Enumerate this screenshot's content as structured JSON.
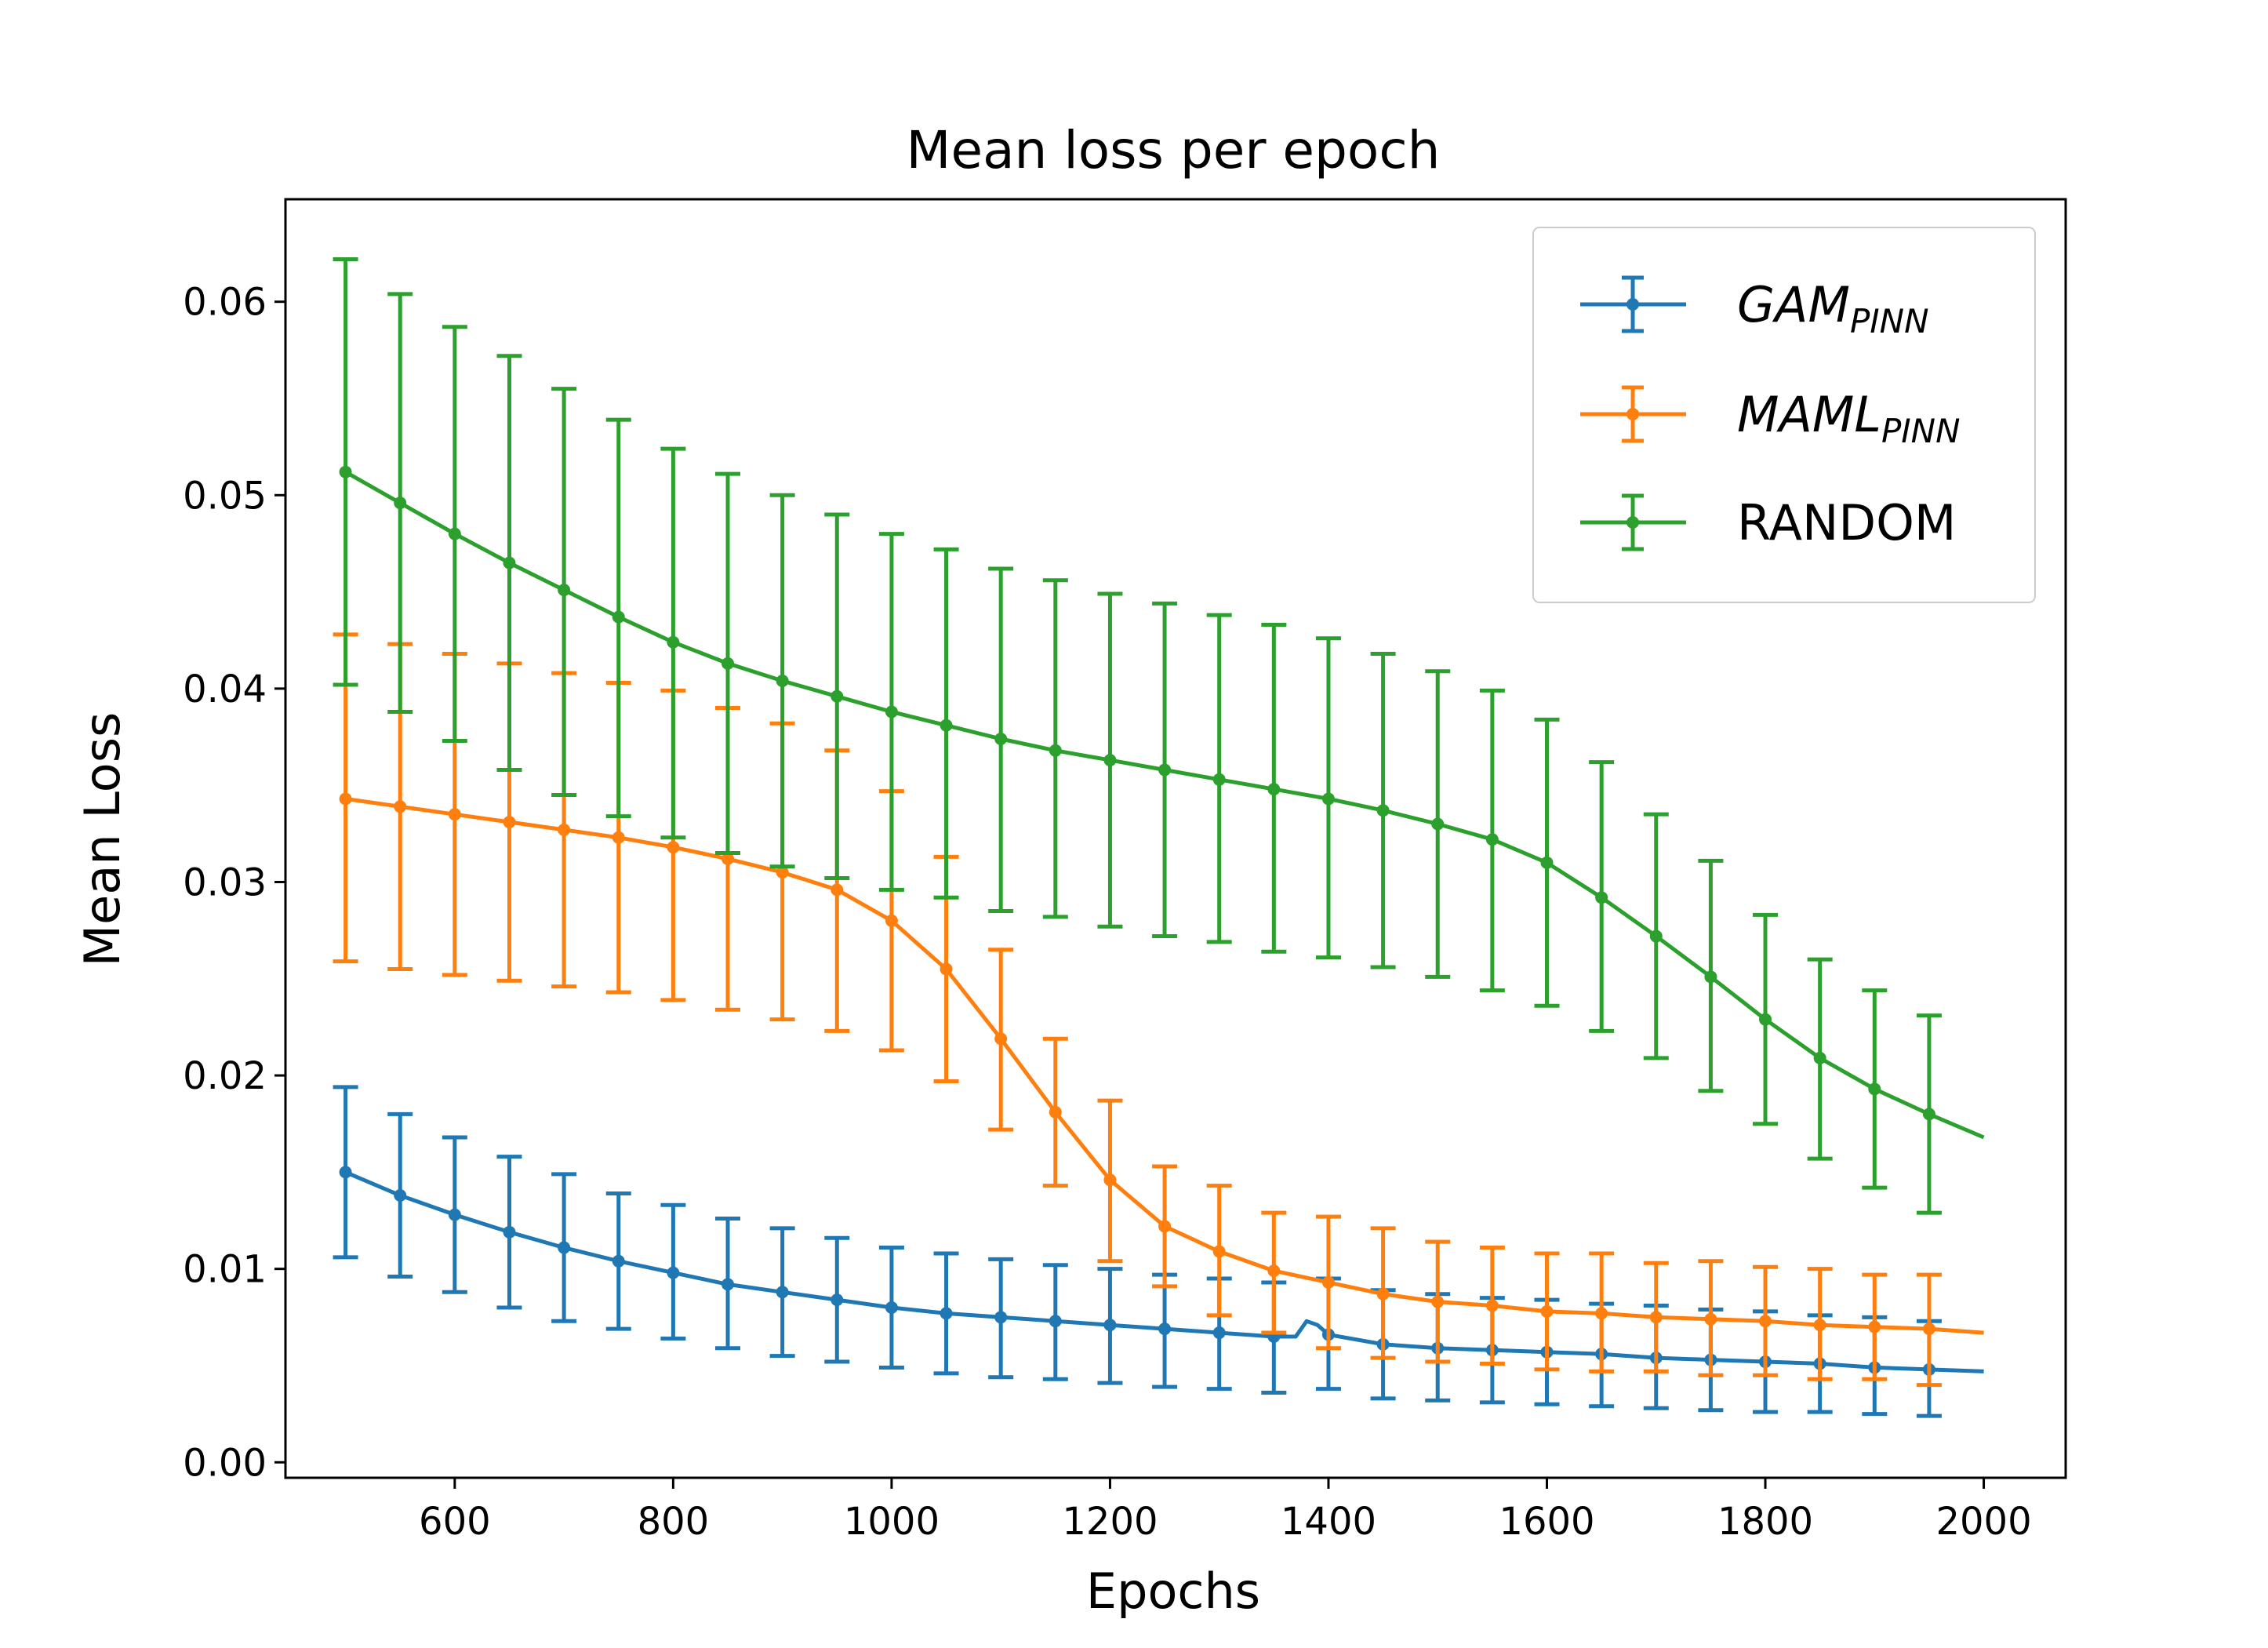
{
  "chart_data": {
    "type": "line",
    "title": "Mean loss per epoch",
    "xlabel": "Epochs",
    "ylabel": "Mean Loss",
    "xlim": [
      445,
      2075
    ],
    "ylim": [
      -0.0008,
      0.0653
    ],
    "xticks": [
      600,
      800,
      1000,
      1200,
      1400,
      1600,
      1800,
      2000
    ],
    "xtick_labels": [
      "600",
      "800",
      "1000",
      "1200",
      "1400",
      "1600",
      "1800",
      "2000"
    ],
    "yticks": [
      0.0,
      0.01,
      0.02,
      0.03,
      0.04,
      0.05,
      0.06
    ],
    "ytick_labels": [
      "0.00",
      "0.01",
      "0.02",
      "0.03",
      "0.04",
      "0.05",
      "0.06"
    ],
    "grid": false,
    "legend": {
      "position": "top-right"
    },
    "series": [
      {
        "name": "GAM",
        "name_subscript": "PINN",
        "name_style": "italic",
        "color": "#1f77b4",
        "error_x": [
          500,
          550,
          600,
          650,
          700,
          750,
          800,
          850,
          900,
          950,
          1000,
          1050,
          1100,
          1150,
          1200,
          1250,
          1300,
          1350,
          1400,
          1450,
          1500,
          1550,
          1600,
          1650,
          1700,
          1750,
          1800,
          1850,
          1900,
          1950
        ],
        "mean": [
          0.015,
          0.0138,
          0.0128,
          0.0119,
          0.0111,
          0.0104,
          0.0098,
          0.0092,
          0.0088,
          0.0084,
          0.008,
          0.0077,
          0.0075,
          0.0073,
          0.0071,
          0.0069,
          0.0067,
          0.0065,
          0.0066,
          0.0061,
          0.0059,
          0.0058,
          0.0057,
          0.0056,
          0.0054,
          0.0053,
          0.0052,
          0.0051,
          0.0049,
          0.0048
        ],
        "upper": [
          0.0194,
          0.018,
          0.0168,
          0.0158,
          0.0149,
          0.0139,
          0.0133,
          0.0126,
          0.0121,
          0.0116,
          0.0111,
          0.0108,
          0.0105,
          0.0102,
          0.01,
          0.0097,
          0.0095,
          0.0093,
          0.0095,
          0.0089,
          0.0087,
          0.0085,
          0.0084,
          0.0082,
          0.0081,
          0.0079,
          0.0078,
          0.0076,
          0.0075,
          0.0073
        ],
        "lower": [
          0.0106,
          0.0096,
          0.0088,
          0.008,
          0.0073,
          0.0069,
          0.0064,
          0.0059,
          0.0055,
          0.0052,
          0.0049,
          0.0046,
          0.0044,
          0.0043,
          0.0041,
          0.0039,
          0.0038,
          0.0036,
          0.0038,
          0.0033,
          0.0032,
          0.0031,
          0.003,
          0.0029,
          0.0028,
          0.0027,
          0.0026,
          0.0026,
          0.0025,
          0.0024
        ],
        "line_x": [
          500,
          550,
          600,
          650,
          700,
          750,
          800,
          850,
          900,
          950,
          1000,
          1050,
          1100,
          1150,
          1200,
          1250,
          1300,
          1350,
          1370,
          1380,
          1390,
          1400,
          1450,
          1500,
          1550,
          1600,
          1650,
          1700,
          1750,
          1800,
          1850,
          1900,
          1950,
          2000
        ],
        "line_y": [
          0.015,
          0.0138,
          0.0128,
          0.0119,
          0.0111,
          0.0104,
          0.0098,
          0.0092,
          0.0088,
          0.0084,
          0.008,
          0.0077,
          0.0075,
          0.0073,
          0.0071,
          0.0069,
          0.0067,
          0.0065,
          0.0065,
          0.0073,
          0.0071,
          0.0066,
          0.0061,
          0.0059,
          0.0058,
          0.0057,
          0.0056,
          0.0054,
          0.0053,
          0.0052,
          0.0051,
          0.0049,
          0.0048,
          0.0047
        ]
      },
      {
        "name": "MAML",
        "name_subscript": "PINN",
        "name_style": "italic",
        "color": "#ff7f0e",
        "error_x": [
          500,
          550,
          600,
          650,
          700,
          750,
          800,
          850,
          900,
          950,
          1000,
          1050,
          1100,
          1150,
          1200,
          1250,
          1300,
          1350,
          1400,
          1450,
          1500,
          1550,
          1600,
          1650,
          1700,
          1750,
          1800,
          1850,
          1900,
          1950
        ],
        "mean": [
          0.0343,
          0.0339,
          0.0335,
          0.0331,
          0.0327,
          0.0323,
          0.0318,
          0.0312,
          0.0305,
          0.0296,
          0.028,
          0.0255,
          0.0219,
          0.0181,
          0.0146,
          0.0122,
          0.0109,
          0.0099,
          0.0093,
          0.0087,
          0.0083,
          0.0081,
          0.0078,
          0.0077,
          0.0075,
          0.0074,
          0.0073,
          0.0071,
          0.007,
          0.0069
        ],
        "upper": [
          0.0428,
          0.0423,
          0.0418,
          0.0413,
          0.0408,
          0.0403,
          0.0399,
          0.039,
          0.0382,
          0.0368,
          0.0347,
          0.0313,
          0.0265,
          0.0219,
          0.0187,
          0.0153,
          0.0143,
          0.0129,
          0.0127,
          0.0121,
          0.0114,
          0.0111,
          0.0108,
          0.0108,
          0.0103,
          0.0104,
          0.0101,
          0.01,
          0.0097,
          0.0097
        ],
        "lower": [
          0.0259,
          0.0255,
          0.0252,
          0.0249,
          0.0246,
          0.0243,
          0.0239,
          0.0234,
          0.0229,
          0.0223,
          0.0213,
          0.0197,
          0.0172,
          0.0143,
          0.0104,
          0.0091,
          0.0076,
          0.0067,
          0.0059,
          0.0054,
          0.0052,
          0.0051,
          0.0048,
          0.0047,
          0.0047,
          0.0045,
          0.0045,
          0.0043,
          0.0043,
          0.004
        ],
        "line_x": [
          500,
          550,
          600,
          650,
          700,
          750,
          800,
          850,
          900,
          950,
          1000,
          1050,
          1100,
          1150,
          1200,
          1250,
          1300,
          1350,
          1400,
          1450,
          1500,
          1550,
          1600,
          1650,
          1700,
          1750,
          1800,
          1850,
          1900,
          1950,
          2000
        ],
        "line_y": [
          0.0343,
          0.0339,
          0.0335,
          0.0331,
          0.0327,
          0.0323,
          0.0318,
          0.0312,
          0.0305,
          0.0296,
          0.028,
          0.0255,
          0.0219,
          0.0181,
          0.0146,
          0.0122,
          0.0109,
          0.0099,
          0.0093,
          0.0087,
          0.0083,
          0.0081,
          0.0078,
          0.0077,
          0.0075,
          0.0074,
          0.0073,
          0.0071,
          0.007,
          0.0069,
          0.0067
        ]
      },
      {
        "name": "RANDOM",
        "name_subscript": "",
        "name_style": "normal",
        "color": "#2ca02c",
        "error_x": [
          500,
          550,
          600,
          650,
          700,
          750,
          800,
          850,
          900,
          950,
          1000,
          1050,
          1100,
          1150,
          1200,
          1250,
          1300,
          1350,
          1400,
          1450,
          1500,
          1550,
          1600,
          1650,
          1700,
          1750,
          1800,
          1850,
          1900,
          1950
        ],
        "mean": [
          0.0512,
          0.0496,
          0.048,
          0.0465,
          0.0451,
          0.0437,
          0.0424,
          0.0413,
          0.0404,
          0.0396,
          0.0388,
          0.0381,
          0.0374,
          0.0368,
          0.0363,
          0.0358,
          0.0353,
          0.0348,
          0.0343,
          0.0337,
          0.033,
          0.0322,
          0.031,
          0.0292,
          0.0272,
          0.0251,
          0.0229,
          0.0209,
          0.0193,
          0.018
        ],
        "upper": [
          0.0622,
          0.0604,
          0.0587,
          0.0572,
          0.0555,
          0.0539,
          0.0524,
          0.0511,
          0.05,
          0.049,
          0.048,
          0.0472,
          0.0462,
          0.0456,
          0.0449,
          0.0444,
          0.0438,
          0.0433,
          0.0426,
          0.0418,
          0.0409,
          0.0399,
          0.0384,
          0.0362,
          0.0335,
          0.0311,
          0.0283,
          0.026,
          0.0244,
          0.0231
        ],
        "lower": [
          0.0402,
          0.0388,
          0.0373,
          0.0358,
          0.0345,
          0.0334,
          0.0323,
          0.0315,
          0.0308,
          0.0302,
          0.0296,
          0.0292,
          0.0285,
          0.0282,
          0.0277,
          0.0272,
          0.0269,
          0.0264,
          0.0261,
          0.0256,
          0.0251,
          0.0244,
          0.0236,
          0.0223,
          0.0209,
          0.0192,
          0.0175,
          0.0157,
          0.0142,
          0.0129
        ],
        "line_x": [
          500,
          550,
          600,
          650,
          700,
          750,
          800,
          850,
          900,
          950,
          1000,
          1050,
          1100,
          1150,
          1200,
          1250,
          1300,
          1350,
          1400,
          1450,
          1500,
          1550,
          1600,
          1650,
          1700,
          1750,
          1800,
          1850,
          1900,
          1950,
          2000
        ],
        "line_y": [
          0.0512,
          0.0496,
          0.048,
          0.0465,
          0.0451,
          0.0437,
          0.0424,
          0.0413,
          0.0404,
          0.0396,
          0.0388,
          0.0381,
          0.0374,
          0.0368,
          0.0363,
          0.0358,
          0.0353,
          0.0348,
          0.0343,
          0.0337,
          0.033,
          0.0322,
          0.031,
          0.0292,
          0.0272,
          0.0251,
          0.0229,
          0.0209,
          0.0193,
          0.018,
          0.0168
        ]
      }
    ]
  }
}
